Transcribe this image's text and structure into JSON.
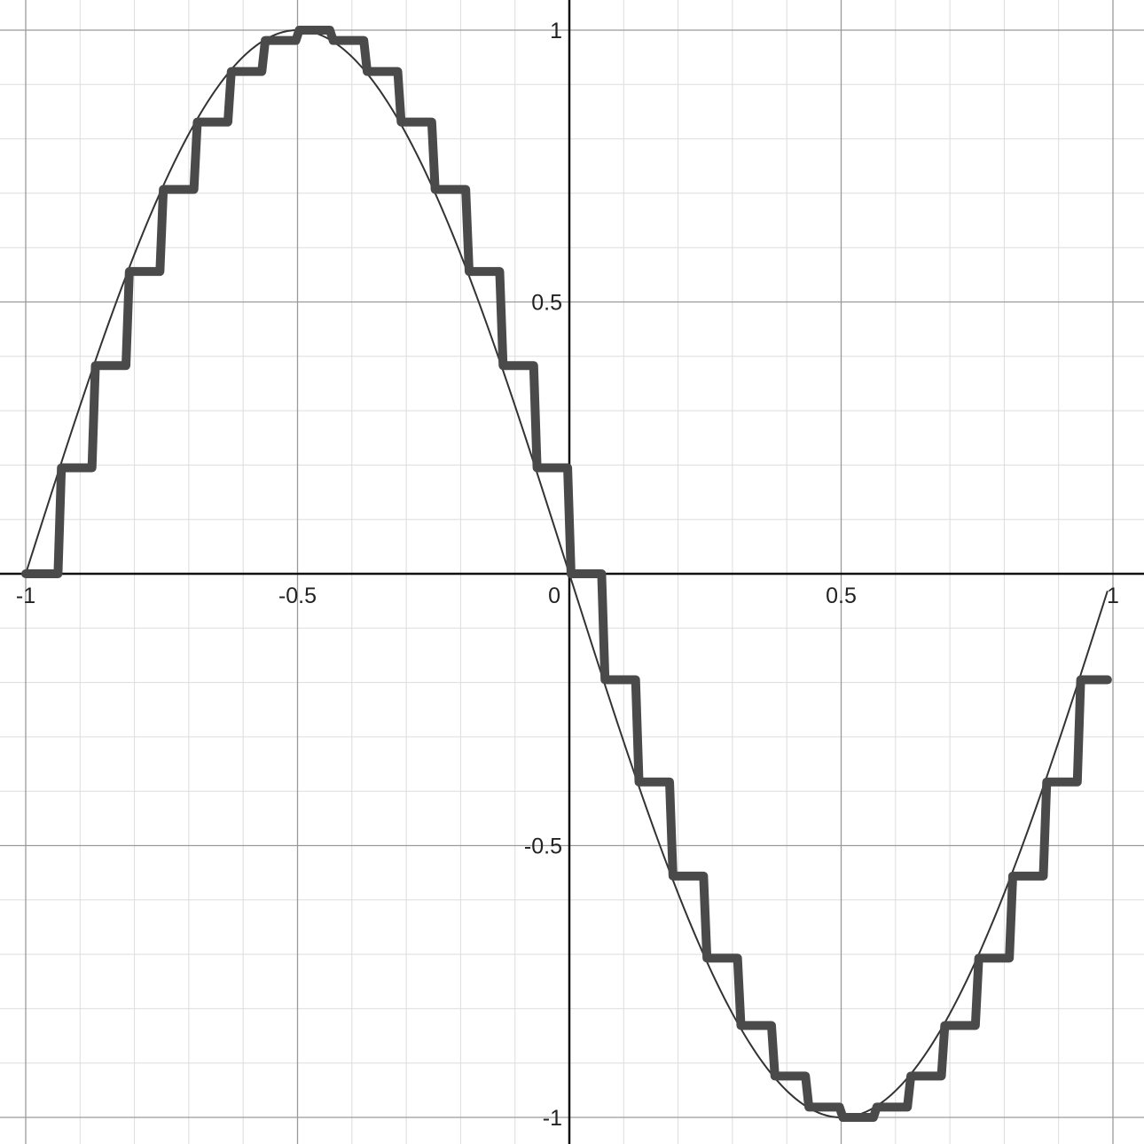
{
  "chart_data": {
    "type": "line",
    "title": "",
    "xlabel": "",
    "ylabel": "",
    "xlim": [
      -1.0,
      1.0
    ],
    "ylim": [
      -1.0,
      1.0
    ],
    "grid": true,
    "minor_grid_step": 0.1,
    "major_grid_step": 0.5,
    "x_ticks": [
      {
        "value": -1,
        "label": "-1"
      },
      {
        "value": -0.5,
        "label": "-0.5"
      },
      {
        "value": 0,
        "label": "0"
      },
      {
        "value": 0.5,
        "label": "0.5"
      },
      {
        "value": 1,
        "label": "1"
      }
    ],
    "y_ticks": [
      {
        "value": 1,
        "label": "1"
      },
      {
        "value": 0.5,
        "label": "0.5"
      },
      {
        "value": -0.5,
        "label": "-0.5"
      },
      {
        "value": -1,
        "label": "-1"
      }
    ],
    "series": [
      {
        "kind": "smooth",
        "function": "sin(-pi*x)",
        "domain": [
          -1.0,
          0.99
        ],
        "color": "#333333"
      },
      {
        "kind": "step",
        "step_width": 0.0625,
        "x": [
          -1.0,
          -0.9375,
          -0.875,
          -0.8125,
          -0.75,
          -0.6875,
          -0.625,
          -0.5625,
          -0.5,
          -0.4375,
          -0.375,
          -0.3125,
          -0.25,
          -0.1875,
          -0.125,
          -0.0625,
          0.0,
          0.0625,
          0.125,
          0.1875,
          0.25,
          0.3125,
          0.375,
          0.4375,
          0.5,
          0.5625,
          0.625,
          0.6875,
          0.75,
          0.8125,
          0.875,
          0.9375
        ],
        "values": [
          0.0,
          0.195,
          0.383,
          0.556,
          0.707,
          0.831,
          0.924,
          0.981,
          1.0,
          0.981,
          0.924,
          0.831,
          0.707,
          0.556,
          0.383,
          0.195,
          0.0,
          -0.195,
          -0.383,
          -0.556,
          -0.707,
          -0.831,
          -0.924,
          -0.981,
          -1.0,
          -0.981,
          -0.924,
          -0.831,
          -0.707,
          -0.556,
          -0.383,
          -0.195
        ],
        "x_end": 0.99,
        "color": "#4a4a4a"
      }
    ]
  }
}
